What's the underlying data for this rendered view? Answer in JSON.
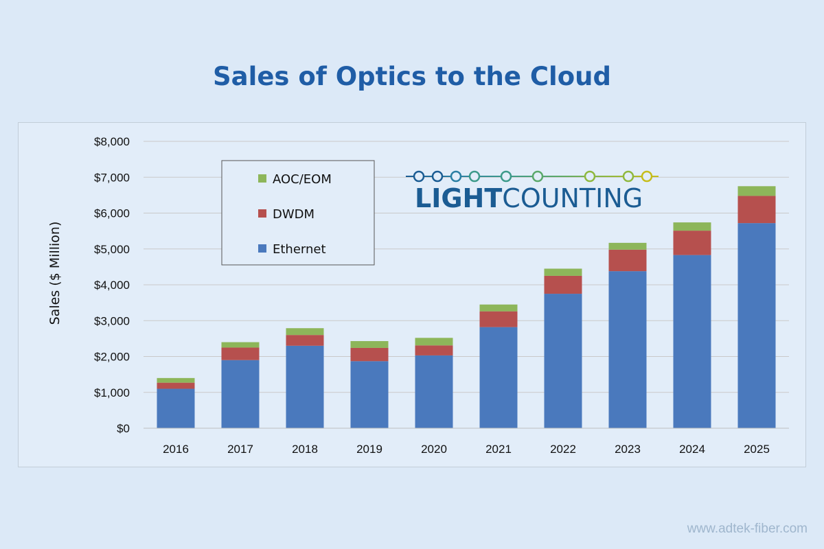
{
  "page": {
    "title": "Sales of Optics to the Cloud",
    "watermark": "www.adtek-fiber.com"
  },
  "logo": {
    "text_bold": "LIGHT",
    "text_regular": "COUNTING",
    "colors": [
      "#1b5c93",
      "#2a7fa3",
      "#3c9a8a",
      "#5aa86a",
      "#8fb83e",
      "#c6bd1a"
    ]
  },
  "chart_data": {
    "type": "bar",
    "stacked": true,
    "categories": [
      "2016",
      "2017",
      "2018",
      "2019",
      "2020",
      "2021",
      "2022",
      "2023",
      "2024",
      "2025"
    ],
    "series": [
      {
        "name": "Ethernet",
        "color": "#4a79bd",
        "values": [
          1100,
          1900,
          2300,
          1870,
          2030,
          2820,
          3750,
          4380,
          4830,
          5720
        ]
      },
      {
        "name": "DWDM",
        "color": "#b6504e",
        "values": [
          170,
          350,
          300,
          370,
          280,
          440,
          500,
          600,
          680,
          760
        ]
      },
      {
        "name": "AOC/EOM",
        "color": "#8db65a",
        "values": [
          130,
          150,
          190,
          190,
          210,
          190,
          200,
          190,
          230,
          270
        ]
      }
    ],
    "ylabel": "Sales ($ Million)",
    "xlabel": "",
    "ylim": [
      0,
      8000
    ],
    "yticks": [
      0,
      1000,
      2000,
      3000,
      4000,
      5000,
      6000,
      7000,
      8000
    ],
    "ytick_labels": [
      "$0",
      "$1,000",
      "$2,000",
      "$3,000",
      "$4,000",
      "$5,000",
      "$6,000",
      "$7,000",
      "$8,000"
    ],
    "legend_order": [
      "AOC/EOM",
      "DWDM",
      "Ethernet"
    ],
    "legend_position": "top-left",
    "grid": true
  }
}
